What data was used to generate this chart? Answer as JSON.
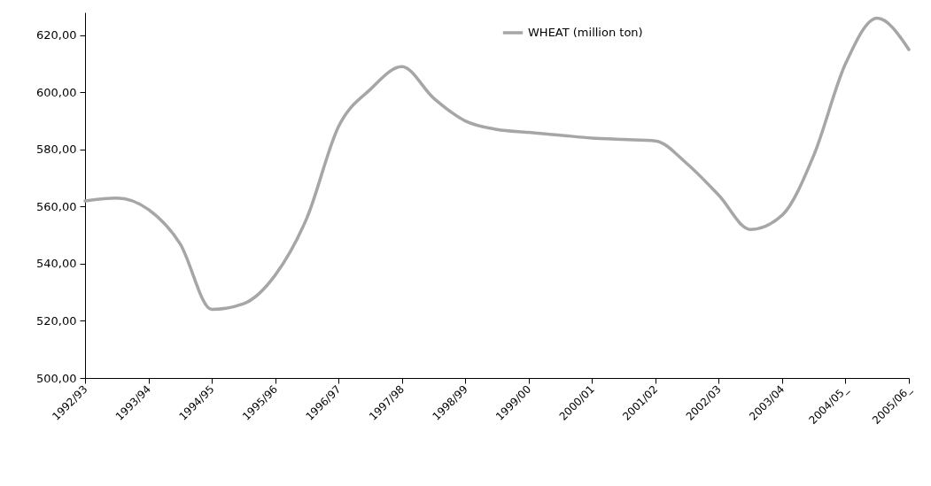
{
  "chart_data": {
    "type": "line",
    "categories": [
      "1992/93",
      null,
      "1993/94",
      null,
      "1994/95",
      null,
      "1995/96",
      null,
      "1996/97",
      null,
      "1997/98",
      null,
      "1998/99",
      null,
      "1999/00",
      null,
      "2000/01",
      null,
      "2001/02",
      null,
      "2002/03",
      null,
      "2003/04",
      null,
      "2004/05_",
      null,
      "2005/06_"
    ],
    "series": [
      {
        "name": "WHEAT (million ton)",
        "color": "#a6a6a6",
        "values": [
          562,
          563,
          559,
          547,
          524,
          526,
          536,
          556,
          588,
          601,
          609,
          598,
          590,
          587,
          586,
          585,
          584,
          583.5,
          583,
          575,
          564,
          552,
          557,
          578,
          610,
          626,
          615
        ]
      }
    ],
    "ylim": [
      500,
      628
    ],
    "yticks": [
      {
        "value": 500,
        "label": "500,00"
      },
      {
        "value": 520,
        "label": "520,00"
      },
      {
        "value": 540,
        "label": "540,00"
      },
      {
        "value": 560,
        "label": "560,00"
      },
      {
        "value": 580,
        "label": "580,00"
      },
      {
        "value": 600,
        "label": "600,00"
      },
      {
        "value": 620,
        "label": "620,00"
      }
    ],
    "grid": false,
    "legend": "top right",
    "marker": "none",
    "line_style": "solid"
  }
}
